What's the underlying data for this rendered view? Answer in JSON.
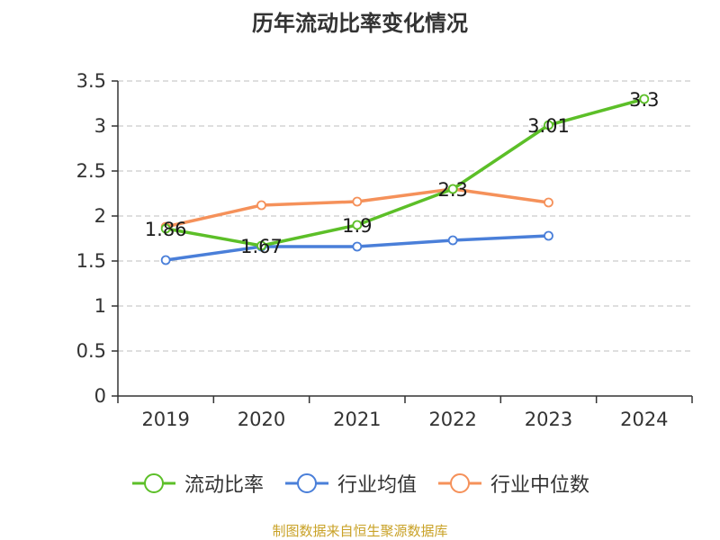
{
  "chart_data": {
    "type": "line",
    "title": "历年流动比率变化情况",
    "categories": [
      "2019",
      "2020",
      "2021",
      "2022",
      "2023",
      "2024"
    ],
    "ylim": [
      0,
      3.5
    ],
    "yticks": [
      "0",
      "0.5",
      "1",
      "1.5",
      "2",
      "2.5",
      "3",
      "3.5"
    ],
    "ytick_values": [
      0,
      0.5,
      1,
      1.5,
      2,
      2.5,
      3,
      3.5
    ],
    "grid": true,
    "legend_position": "bottom",
    "series": [
      {
        "name": "流动比率",
        "color": "#5CBF28",
        "values": [
          1.86,
          1.67,
          1.9,
          2.3,
          3.01,
          3.3
        ],
        "labels": [
          "1.86",
          "1.67",
          "1.9",
          "2.3",
          "3.01",
          "3.3"
        ]
      },
      {
        "name": "行业均值",
        "color": "#4A7FD9",
        "values": [
          1.51,
          1.66,
          1.66,
          1.73,
          1.78,
          null
        ],
        "labels": null
      },
      {
        "name": "行业中位数",
        "color": "#F5915A",
        "values": [
          1.88,
          2.12,
          2.16,
          2.3,
          2.15,
          null
        ],
        "labels": null
      }
    ]
  },
  "footer": {
    "source": "制图数据来自恒生聚源数据库",
    "source_color": "#C9A227"
  },
  "colors": {
    "axis": "#333333",
    "grid": "#CCCCCC",
    "text": "#333333"
  }
}
